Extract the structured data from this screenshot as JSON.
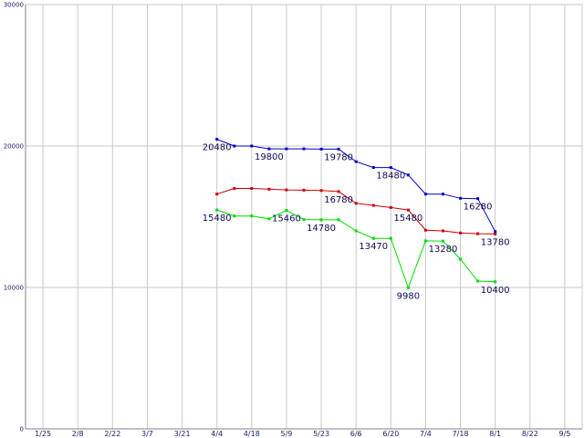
{
  "chart_data": {
    "type": "line",
    "title": "",
    "xlabel": "",
    "ylabel": "",
    "ylim": [
      0,
      30000
    ],
    "yticks": [
      0,
      10000,
      20000,
      30000
    ],
    "grid": true,
    "x_tick_labels": [
      "1/25",
      "2/8",
      "2/22",
      "3/7",
      "3/21",
      "4/4",
      "4/18",
      "5/9",
      "5/23",
      "6/6",
      "6/20",
      "7/4",
      "7/18",
      "8/1",
      "8/22",
      "9/5"
    ],
    "series": [
      {
        "color": "#0000cc",
        "points": [
          {
            "x": 5.0,
            "y": 20480,
            "label": "20480"
          },
          {
            "x": 5.5,
            "y": 20000
          },
          {
            "x": 6.0,
            "y": 20000
          },
          {
            "x": 6.5,
            "y": 19800,
            "label": "19800"
          },
          {
            "x": 7.0,
            "y": 19800
          },
          {
            "x": 7.5,
            "y": 19800
          },
          {
            "x": 8.0,
            "y": 19780
          },
          {
            "x": 8.5,
            "y": 19780,
            "label": "19780"
          },
          {
            "x": 9.0,
            "y": 18900
          },
          {
            "x": 9.5,
            "y": 18480
          },
          {
            "x": 10.0,
            "y": 18480,
            "label": "18480"
          },
          {
            "x": 10.5,
            "y": 17950
          },
          {
            "x": 11.0,
            "y": 16600
          },
          {
            "x": 11.5,
            "y": 16600
          },
          {
            "x": 12.0,
            "y": 16300
          },
          {
            "x": 12.5,
            "y": 16280,
            "label": "16280"
          },
          {
            "x": 13.0,
            "y": 13950
          }
        ]
      },
      {
        "color": "#cc0000",
        "points": [
          {
            "x": 5.0,
            "y": 16600
          },
          {
            "x": 5.5,
            "y": 17000
          },
          {
            "x": 6.0,
            "y": 17000
          },
          {
            "x": 6.5,
            "y": 16950
          },
          {
            "x": 7.0,
            "y": 16900
          },
          {
            "x": 7.5,
            "y": 16880
          },
          {
            "x": 8.0,
            "y": 16850
          },
          {
            "x": 8.5,
            "y": 16780,
            "label": "16780"
          },
          {
            "x": 9.0,
            "y": 15950
          },
          {
            "x": 9.5,
            "y": 15800
          },
          {
            "x": 10.0,
            "y": 15650
          },
          {
            "x": 10.5,
            "y": 15480,
            "label": "15480"
          },
          {
            "x": 11.0,
            "y": 14050
          },
          {
            "x": 11.5,
            "y": 14000
          },
          {
            "x": 12.0,
            "y": 13850
          },
          {
            "x": 12.5,
            "y": 13800
          },
          {
            "x": 13.0,
            "y": 13780,
            "label": "13780"
          }
        ]
      },
      {
        "color": "#00dd00",
        "points": [
          {
            "x": 5.0,
            "y": 15480,
            "label": "15480"
          },
          {
            "x": 5.5,
            "y": 15050
          },
          {
            "x": 6.0,
            "y": 15050
          },
          {
            "x": 6.5,
            "y": 14850
          },
          {
            "x": 7.0,
            "y": 15460,
            "label": "15460"
          },
          {
            "x": 7.5,
            "y": 14800
          },
          {
            "x": 8.0,
            "y": 14780,
            "label": "14780"
          },
          {
            "x": 8.5,
            "y": 14780
          },
          {
            "x": 9.0,
            "y": 14000
          },
          {
            "x": 9.5,
            "y": 13470,
            "label": "13470"
          },
          {
            "x": 10.0,
            "y": 13470
          },
          {
            "x": 10.5,
            "y": 9980,
            "label": "9980"
          },
          {
            "x": 11.0,
            "y": 13300
          },
          {
            "x": 11.5,
            "y": 13280,
            "label": "13280"
          },
          {
            "x": 12.0,
            "y": 12000
          },
          {
            "x": 12.5,
            "y": 10450
          },
          {
            "x": 13.0,
            "y": 10400,
            "label": "10400"
          }
        ]
      }
    ]
  }
}
